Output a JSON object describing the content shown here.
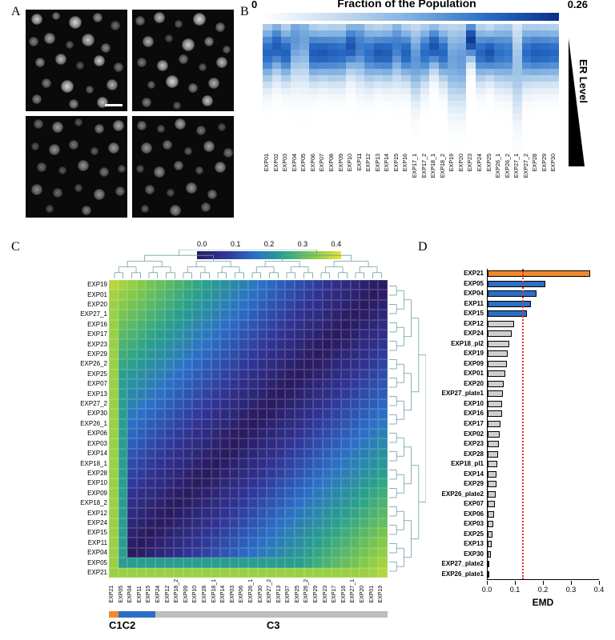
{
  "labels": {
    "A": "A",
    "B": "B",
    "C": "C",
    "D": "D"
  },
  "panelA": {
    "bg": "#0a0a0a",
    "quads": [
      {
        "cells": [
          [
            14,
            12,
            7,
            0.9
          ],
          [
            38,
            8,
            5,
            0.5
          ],
          [
            62,
            16,
            8,
            0.95
          ],
          [
            90,
            10,
            6,
            0.6
          ],
          [
            112,
            20,
            6,
            0.4
          ],
          [
            10,
            40,
            6,
            0.5
          ],
          [
            30,
            36,
            7,
            0.7
          ],
          [
            55,
            44,
            5,
            0.35
          ],
          [
            78,
            38,
            8,
            0.85
          ],
          [
            100,
            48,
            6,
            0.55
          ],
          [
            18,
            66,
            6,
            0.6
          ],
          [
            44,
            62,
            7,
            0.8
          ],
          [
            68,
            70,
            5,
            0.3
          ],
          [
            92,
            64,
            7,
            0.9
          ],
          [
            116,
            72,
            6,
            0.45
          ],
          [
            26,
            92,
            6,
            0.5
          ],
          [
            52,
            96,
            8,
            0.95
          ],
          [
            80,
            100,
            5,
            0.4
          ],
          [
            108,
            94,
            7,
            0.75
          ],
          [
            14,
            112,
            6,
            0.55
          ],
          [
            60,
            118,
            6,
            0.6
          ],
          [
            96,
            116,
            7,
            0.85
          ]
        ]
      },
      {
        "cells": [
          [
            10,
            14,
            6,
            0.5
          ],
          [
            34,
            10,
            7,
            0.8
          ],
          [
            58,
            18,
            5,
            0.35
          ],
          [
            84,
            12,
            8,
            0.95
          ],
          [
            110,
            22,
            6,
            0.55
          ],
          [
            20,
            40,
            7,
            0.75
          ],
          [
            46,
            36,
            5,
            0.3
          ],
          [
            70,
            44,
            8,
            0.9
          ],
          [
            96,
            40,
            6,
            0.6
          ],
          [
            118,
            50,
            5,
            0.4
          ],
          [
            12,
            66,
            6,
            0.45
          ],
          [
            38,
            70,
            7,
            0.85
          ],
          [
            64,
            62,
            6,
            0.5
          ],
          [
            88,
            72,
            5,
            0.35
          ],
          [
            112,
            66,
            7,
            0.8
          ],
          [
            24,
            94,
            5,
            0.4
          ],
          [
            50,
            90,
            8,
            0.95
          ],
          [
            76,
            98,
            6,
            0.55
          ],
          [
            102,
            92,
            7,
            0.75
          ],
          [
            18,
            116,
            6,
            0.5
          ],
          [
            56,
            120,
            5,
            0.35
          ],
          [
            94,
            114,
            7,
            0.85
          ]
        ]
      },
      {
        "cells": [
          [
            16,
            10,
            6,
            0.4
          ],
          [
            40,
            14,
            7,
            0.65
          ],
          [
            66,
            8,
            5,
            0.3
          ],
          [
            92,
            16,
            6,
            0.55
          ],
          [
            116,
            12,
            7,
            0.7
          ],
          [
            12,
            38,
            5,
            0.3
          ],
          [
            36,
            42,
            7,
            0.6
          ],
          [
            60,
            36,
            6,
            0.45
          ],
          [
            86,
            44,
            5,
            0.35
          ],
          [
            110,
            40,
            7,
            0.65
          ],
          [
            20,
            64,
            6,
            0.4
          ],
          [
            46,
            68,
            5,
            0.3
          ],
          [
            72,
            62,
            7,
            0.6
          ],
          [
            98,
            70,
            6,
            0.45
          ],
          [
            120,
            66,
            5,
            0.35
          ],
          [
            14,
            92,
            7,
            0.55
          ],
          [
            40,
            96,
            6,
            0.4
          ],
          [
            66,
            90,
            5,
            0.3
          ],
          [
            92,
            98,
            7,
            0.6
          ],
          [
            118,
            94,
            6,
            0.45
          ],
          [
            30,
            116,
            5,
            0.3
          ],
          [
            76,
            118,
            6,
            0.5
          ]
        ]
      },
      {
        "cells": [
          [
            12,
            12,
            6,
            0.5
          ],
          [
            36,
            16,
            5,
            0.35
          ],
          [
            60,
            10,
            7,
            0.7
          ],
          [
            86,
            18,
            6,
            0.45
          ],
          [
            112,
            14,
            5,
            0.3
          ],
          [
            18,
            40,
            7,
            0.6
          ],
          [
            44,
            36,
            6,
            0.5
          ],
          [
            70,
            44,
            5,
            0.35
          ],
          [
            96,
            38,
            7,
            0.65
          ],
          [
            120,
            46,
            6,
            0.45
          ],
          [
            10,
            66,
            5,
            0.3
          ],
          [
            34,
            70,
            7,
            0.6
          ],
          [
            58,
            62,
            6,
            0.5
          ],
          [
            84,
            68,
            5,
            0.35
          ],
          [
            110,
            64,
            7,
            0.65
          ],
          [
            22,
            92,
            6,
            0.45
          ],
          [
            48,
            96,
            5,
            0.3
          ],
          [
            74,
            90,
            7,
            0.6
          ],
          [
            100,
            98,
            6,
            0.5
          ],
          [
            16,
            116,
            5,
            0.35
          ],
          [
            54,
            118,
            7,
            0.6
          ],
          [
            92,
            114,
            6,
            0.45
          ]
        ]
      }
    ]
  },
  "panelB": {
    "title": "Fraction of the Population",
    "cscale": {
      "min": "0",
      "max": "0.26",
      "stops": [
        "#ffffff",
        "#c7dcf0",
        "#7fb0e0",
        "#2b6fc7",
        "#0a2f8a"
      ]
    },
    "erLabel": "ER Level",
    "nBins": 20,
    "columns": [
      "EXP01",
      "EXP02",
      "EXP03",
      "EXP04",
      "EXP05",
      "EXP06",
      "EXP07",
      "EXP08",
      "EXP09",
      "EXP10",
      "EXP11",
      "EXP12",
      "EXP13",
      "EXP14",
      "EXP15",
      "EXP16",
      "EXP17_1",
      "EXP17_2",
      "EXP18_1",
      "EXP18_2",
      "EXP19",
      "EXP20",
      "EXP23",
      "EXP24",
      "EXP25",
      "EXP26_1",
      "EXP26_2",
      "EXP27_1",
      "EXP27_2",
      "EXP28",
      "EXP29",
      "EXP30"
    ],
    "peaks": [
      4,
      3,
      4,
      2,
      2,
      4,
      4,
      4,
      4,
      3,
      3,
      4,
      4,
      4,
      3,
      4,
      5,
      4,
      3,
      4,
      5,
      5,
      2,
      4,
      4,
      4,
      4,
      6,
      4,
      4,
      4,
      4
    ],
    "amps": [
      0.78,
      0.82,
      0.8,
      0.6,
      0.55,
      0.82,
      0.84,
      0.8,
      0.78,
      0.85,
      0.7,
      0.75,
      0.84,
      0.82,
      0.7,
      0.8,
      0.6,
      0.76,
      0.86,
      0.78,
      0.55,
      0.58,
      0.95,
      0.78,
      0.86,
      0.75,
      0.72,
      0.4,
      0.76,
      0.82,
      0.8,
      0.78
    ],
    "widths": [
      3.2,
      3.0,
      3.0,
      4.0,
      4.2,
      3.0,
      2.8,
      3.0,
      3.0,
      2.8,
      3.5,
      3.2,
      2.8,
      3.0,
      3.5,
      3.0,
      4.0,
      3.2,
      2.6,
      3.0,
      4.5,
      4.5,
      2.2,
      3.0,
      2.6,
      3.2,
      3.4,
      5.0,
      3.2,
      3.0,
      3.0,
      3.0
    ]
  },
  "panelC": {
    "colorbar": {
      "ticks": [
        "0.0",
        "0.1",
        "0.2",
        "0.3",
        "0.4"
      ],
      "stops": [
        "#2a1a5e",
        "#303596",
        "#2b6fc7",
        "#2aa28a",
        "#7fc94a",
        "#e8e337"
      ]
    },
    "order": [
      "EXP19",
      "EXP01",
      "EXP20",
      "EXP27_1",
      "EXP16",
      "EXP17",
      "EXP23",
      "EXP29",
      "EXP26_2",
      "EXP25",
      "EXP07",
      "EXP13",
      "EXP27_2",
      "EXP30",
      "EXP26_1",
      "EXP06",
      "EXP03",
      "EXP14",
      "EXP18_1",
      "EXP28",
      "EXP10",
      "EXP09",
      "EXP18_2",
      "EXP12",
      "EXP24",
      "EXP15",
      "EXP11",
      "EXP04",
      "EXP05",
      "EXP21"
    ],
    "clusters": {
      "C1": {
        "color": "#f08a2c",
        "span": 1,
        "label": "C1"
      },
      "C2": {
        "color": "#2b6fc7",
        "span": 4,
        "label": "C2"
      },
      "C3": {
        "color": "#bdbdbd",
        "span": 25,
        "label": "C3"
      }
    }
  },
  "panelD": {
    "xlabel": "EMD",
    "xmax": 0.4,
    "xticks": [
      0.0,
      0.1,
      0.2,
      0.3,
      0.4
    ],
    "threshold": 0.125,
    "threshold_color": "#e03030",
    "colors": {
      "c1": "#f08a2c",
      "c2": "#2b6fc7",
      "grey": "#cfcfcf"
    },
    "bars": [
      {
        "label": "EXP21",
        "value": 0.365,
        "color": "c1"
      },
      {
        "label": "EXP05",
        "value": 0.205,
        "color": "c2"
      },
      {
        "label": "EXP04",
        "value": 0.175,
        "color": "c2"
      },
      {
        "label": "EXP11",
        "value": 0.155,
        "color": "c2"
      },
      {
        "label": "EXP15",
        "value": 0.14,
        "color": "c2"
      },
      {
        "label": "EXP12",
        "value": 0.095,
        "color": "grey"
      },
      {
        "label": "EXP24",
        "value": 0.085,
        "color": "grey"
      },
      {
        "label": "EXP18_pl2",
        "value": 0.078,
        "color": "grey"
      },
      {
        "label": "EXP19",
        "value": 0.072,
        "color": "grey"
      },
      {
        "label": "EXP09",
        "value": 0.068,
        "color": "grey"
      },
      {
        "label": "EXP01",
        "value": 0.062,
        "color": "grey"
      },
      {
        "label": "EXP20",
        "value": 0.058,
        "color": "grey"
      },
      {
        "label": "EXP27_plate1",
        "value": 0.055,
        "color": "grey"
      },
      {
        "label": "EXP10",
        "value": 0.052,
        "color": "grey"
      },
      {
        "label": "EXP16",
        "value": 0.05,
        "color": "grey"
      },
      {
        "label": "EXP17",
        "value": 0.047,
        "color": "grey"
      },
      {
        "label": "EXP02",
        "value": 0.044,
        "color": "grey"
      },
      {
        "label": "EXP23",
        "value": 0.041,
        "color": "grey"
      },
      {
        "label": "EXP28",
        "value": 0.038,
        "color": "grey"
      },
      {
        "label": "EXP18_pl1",
        "value": 0.035,
        "color": "grey"
      },
      {
        "label": "EXP14",
        "value": 0.032,
        "color": "grey"
      },
      {
        "label": "EXP29",
        "value": 0.03,
        "color": "grey"
      },
      {
        "label": "EXP26_plate2",
        "value": 0.028,
        "color": "grey"
      },
      {
        "label": "EXP07",
        "value": 0.025,
        "color": "grey"
      },
      {
        "label": "EXP06",
        "value": 0.022,
        "color": "grey"
      },
      {
        "label": "EXP03",
        "value": 0.02,
        "color": "grey"
      },
      {
        "label": "EXP25",
        "value": 0.017,
        "color": "grey"
      },
      {
        "label": "EXP13",
        "value": 0.014,
        "color": "grey"
      },
      {
        "label": "EXP30",
        "value": 0.011,
        "color": "grey"
      },
      {
        "label": "EXP27_plate2",
        "value": 0.007,
        "color": "grey"
      },
      {
        "label": "EXP26_plate1",
        "value": 0.004,
        "color": "grey"
      }
    ]
  }
}
